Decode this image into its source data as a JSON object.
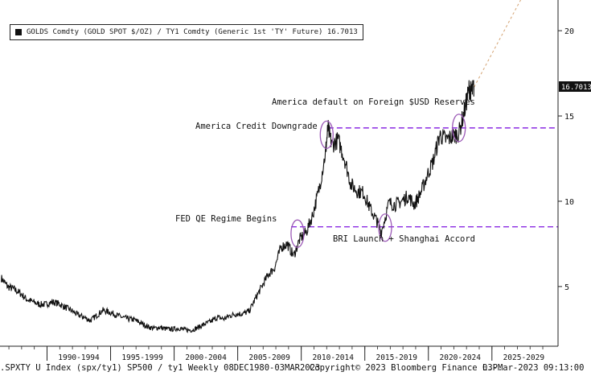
{
  "legend": {
    "text": "GOLDS Comdty (GOLD SPOT $/OZ) / TY1 Comdty (Generic 1st 'TY' Future) 16.7013"
  },
  "footer": {
    "left": ".SPXTY U Index (spx/ty1) SP500 / ty1  Weekly 08DEC1980-03MAR2023",
    "center": "Copyright© 2023 Bloomberg Finance L.P.",
    "right": "03-Mar-2023 09:13:00"
  },
  "annotations": {
    "america_default": "America default on Foreign $USD Reserves",
    "credit_downgrade": "America Credit Downgrade",
    "qe_regime": "FED QE Regime Begins",
    "bri_launch": "BRI Launch + Shanghai Accord"
  },
  "colors": {
    "series": "#111111",
    "reference_line": "#8a2be2",
    "circle": "#9b59b6",
    "trend": "#d4a373"
  },
  "chart_data": {
    "type": "line",
    "x_tick_labels": [
      "1990-1994",
      "1995-1999",
      "2000-2004",
      "2005-2009",
      "2010-2014",
      "2015-2019",
      "2020-2024",
      "2025-2029"
    ],
    "y_ticks": [
      5,
      10,
      15,
      20
    ],
    "ylim": [
      1.5,
      21.8
    ],
    "xlim": [
      1985.9,
      2029.8
    ],
    "last_value_label": "16.7013",
    "series": [
      {
        "points": [
          [
            1986.0,
            5.5
          ],
          [
            1986.5,
            5.0
          ],
          [
            1987.0,
            4.85
          ],
          [
            1987.5,
            4.6
          ],
          [
            1988.0,
            4.25
          ],
          [
            1988.5,
            4.1
          ],
          [
            1989.0,
            3.95
          ],
          [
            1989.5,
            3.95
          ],
          [
            1990.0,
            4.1
          ],
          [
            1990.5,
            4.0
          ],
          [
            1991.0,
            3.8
          ],
          [
            1991.5,
            3.6
          ],
          [
            1992.0,
            3.35
          ],
          [
            1992.5,
            3.2
          ],
          [
            1993.0,
            3.0
          ],
          [
            1993.5,
            3.3
          ],
          [
            1994.0,
            3.6
          ],
          [
            1994.5,
            3.5
          ],
          [
            1995.0,
            3.35
          ],
          [
            1995.5,
            3.2
          ],
          [
            1996.0,
            3.1
          ],
          [
            1996.5,
            3.05
          ],
          [
            1997.0,
            2.85
          ],
          [
            1997.5,
            2.65
          ],
          [
            1998.0,
            2.55
          ],
          [
            1998.5,
            2.6
          ],
          [
            1999.0,
            2.5
          ],
          [
            1999.5,
            2.5
          ],
          [
            2000.0,
            2.55
          ],
          [
            2000.5,
            2.45
          ],
          [
            2001.0,
            2.45
          ],
          [
            2001.5,
            2.6
          ],
          [
            2002.0,
            2.8
          ],
          [
            2002.5,
            2.95
          ],
          [
            2003.0,
            3.2
          ],
          [
            2003.5,
            3.1
          ],
          [
            2004.0,
            3.3
          ],
          [
            2004.5,
            3.4
          ],
          [
            2005.0,
            3.4
          ],
          [
            2005.5,
            3.55
          ],
          [
            2006.0,
            4.3
          ],
          [
            2006.5,
            5.0
          ],
          [
            2007.0,
            5.7
          ],
          [
            2007.5,
            6.1
          ],
          [
            2008.0,
            7.3
          ],
          [
            2008.5,
            7.5
          ],
          [
            2009.0,
            6.8
          ],
          [
            2009.5,
            7.8
          ],
          [
            2010.0,
            8.2
          ],
          [
            2010.5,
            9.2
          ],
          [
            2011.0,
            10.7
          ],
          [
            2011.5,
            12.8
          ],
          [
            2011.7,
            14.3
          ],
          [
            2012.0,
            13.3
          ],
          [
            2012.5,
            13.6
          ],
          [
            2013.0,
            12.5
          ],
          [
            2013.5,
            11.0
          ],
          [
            2014.0,
            10.6
          ],
          [
            2014.5,
            10.5
          ],
          [
            2015.0,
            9.6
          ],
          [
            2015.5,
            8.9
          ],
          [
            2015.9,
            8.2
          ],
          [
            2016.5,
            9.9
          ],
          [
            2017.0,
            9.8
          ],
          [
            2017.5,
            10.0
          ],
          [
            2018.0,
            10.3
          ],
          [
            2018.5,
            9.8
          ],
          [
            2019.0,
            10.5
          ],
          [
            2019.5,
            11.5
          ],
          [
            2020.0,
            12.4
          ],
          [
            2020.5,
            13.9
          ],
          [
            2021.0,
            13.6
          ],
          [
            2021.5,
            13.8
          ],
          [
            2022.0,
            14.0
          ],
          [
            2022.5,
            15.5
          ],
          [
            2022.8,
            16.6
          ],
          [
            2023.0,
            16.4
          ],
          [
            2023.2,
            16.7013
          ]
        ]
      }
    ],
    "reference_lines": [
      14.3,
      8.5
    ],
    "trend_projection": [
      [
        2023.2,
        16.7013
      ],
      [
        2027.0,
        22.0
      ]
    ],
    "circles": [
      [
        2011.6,
        13.9
      ],
      [
        2009.3,
        8.1
      ],
      [
        2016.2,
        8.45
      ],
      [
        2022.0,
        14.3
      ]
    ]
  }
}
